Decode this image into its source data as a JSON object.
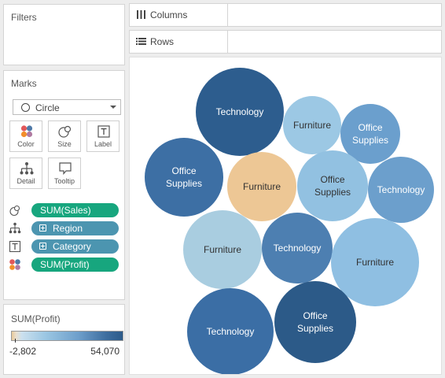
{
  "filters": {
    "title": "Filters"
  },
  "shelves": {
    "columns_label": "Columns",
    "rows_label": "Rows"
  },
  "marks": {
    "title": "Marks",
    "mark_type": "Circle",
    "buttons": [
      {
        "label": "Color",
        "icon": "color-dots-icon"
      },
      {
        "label": "Size",
        "icon": "size-circles-icon"
      },
      {
        "label": "Label",
        "icon": "label-t-icon"
      },
      {
        "label": "Detail",
        "icon": "detail-tree-icon"
      },
      {
        "label": "Tooltip",
        "icon": "tooltip-bubble-icon"
      }
    ],
    "fields": [
      {
        "name": "SUM(Sales)",
        "icon": "size-circles-icon",
        "color": "#17a67e"
      },
      {
        "name": "Region",
        "icon": "detail-tree-icon",
        "color": "#4c95b0"
      },
      {
        "name": "Category",
        "icon": "label-t-icon",
        "color": "#4c95b0"
      },
      {
        "name": "SUM(Profit)",
        "icon": "color-dots-icon",
        "color": "#17a67e"
      }
    ]
  },
  "legend": {
    "title": "SUM(Profit)",
    "min_label": "-2,802",
    "max_label": "54,070"
  },
  "chart_data": {
    "type": "packed-bubble",
    "size_field": "SUM(Sales)",
    "color_field": "SUM(Profit)",
    "color_range": [
      -2802,
      54070
    ],
    "bubbles": [
      {
        "label": "Technology",
        "color": "#2d5d8e"
      },
      {
        "label": "Furniture",
        "color": "#9cc8e4"
      },
      {
        "label": "Office Supplies",
        "color": "#6b9fcd"
      },
      {
        "label": "Office Supplies",
        "color": "#3d6fa4"
      },
      {
        "label": "Furniture",
        "color": "#edc795"
      },
      {
        "label": "Office Supplies",
        "color": "#92c1e1"
      },
      {
        "label": "Technology",
        "color": "#6c9fcc"
      },
      {
        "label": "Furniture",
        "color": "#a9cde0"
      },
      {
        "label": "Technology",
        "color": "#4d7fb1"
      },
      {
        "label": "Furniture",
        "color": "#8fbfe2"
      },
      {
        "label": "Technology",
        "color": "#3b6ea5"
      },
      {
        "label": "Office Supplies",
        "color": "#2c5a88"
      }
    ]
  }
}
